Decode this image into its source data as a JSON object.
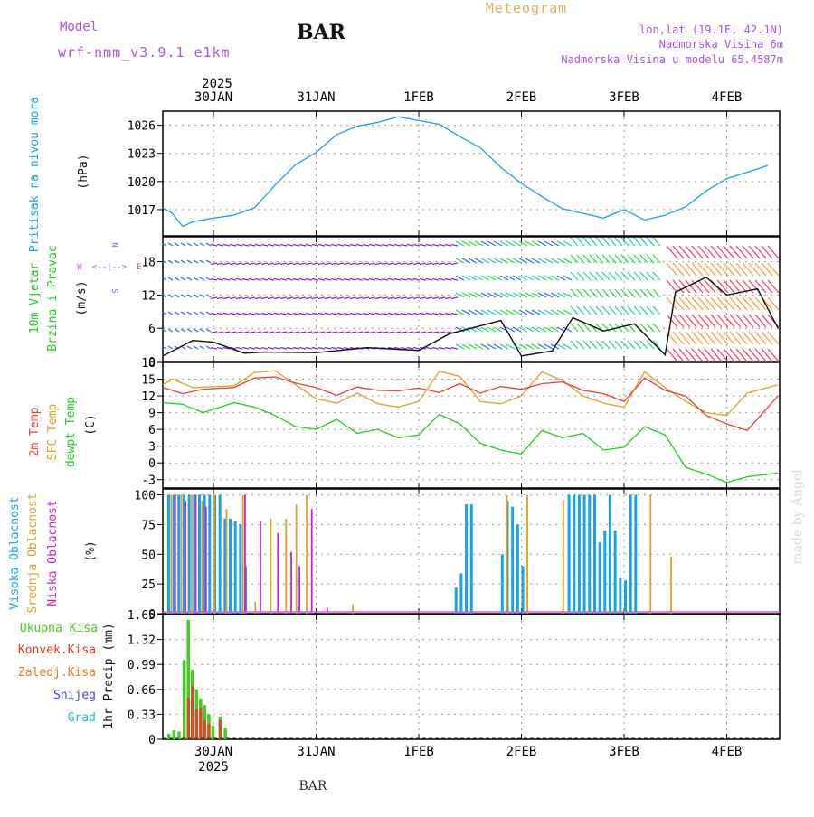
{
  "header": {
    "model_label": "Model",
    "model_name": "wrf-nmm_v3.9.1 e1km",
    "station": "BAR",
    "meteogram": "Meteogram",
    "lonlat": "lon,lat (19.1E, 42.1N)",
    "elevation": "Nadmorska Visina 6m",
    "model_elevation": "Nadmorska Visina u modelu 65.4587m"
  },
  "footer": {
    "station": "BAR",
    "watermark": "made by Angel"
  },
  "colors": {
    "pressure": "#19a2ea",
    "temp2m": "#e8403c",
    "sfc": "#e0a028",
    "dewpt": "#22cc22",
    "wind_label": "#22cc22",
    "cloud_high": "#19a2ea",
    "cloud_mid": "#e0a028",
    "cloud_low": "#cc22cc",
    "precip_total": "#44cc22",
    "precip_conv": "#ee3322",
    "precip_frz": "#ee7722",
    "precip_snow": "#4444ee",
    "precip_grad": "#22bbbb",
    "model": "#aa55dd"
  },
  "chart_data": [
    {
      "type": "line",
      "title": "Pritisak na nivou mora",
      "ylabel": "(hPa)",
      "ylim": [
        1014.2,
        1027.5
      ],
      "yticks": [
        1017,
        1020,
        1023,
        1026
      ],
      "x_days": [
        "30JAN",
        "31JAN",
        "1FEB",
        "2FEB",
        "3FEB",
        "4FEB"
      ],
      "year": "2025",
      "grid": true,
      "series": [
        {
          "name": "Pritisak na nivou mora",
          "x": [
            -0.5,
            -0.4,
            -0.3,
            -0.2,
            0,
            0.2,
            0.4,
            0.6,
            0.8,
            1.0,
            1.2,
            1.4,
            1.6,
            1.8,
            2.0,
            2.2,
            2.4,
            2.6,
            2.8,
            3.0,
            3.2,
            3.4,
            3.6,
            3.8,
            4.0,
            4.2,
            4.4,
            4.6,
            4.8,
            5.0,
            5.2,
            5.4
          ],
          "y": [
            1017.2,
            1016.6,
            1015.2,
            1015.7,
            1016.1,
            1016.4,
            1017.2,
            1019.6,
            1021.8,
            1023.1,
            1025.0,
            1025.9,
            1026.3,
            1026.9,
            1026.5,
            1026.1,
            1024.8,
            1023.6,
            1021.5,
            1019.8,
            1018.4,
            1017.1,
            1016.6,
            1016.1,
            1017.0,
            1015.9,
            1016.4,
            1017.3,
            1019.0,
            1020.3,
            1021.0,
            1021.7
          ]
        }
      ]
    },
    {
      "type": "line",
      "title": "10m Vjetar Brzina i Pravac",
      "ylabel": "(m/s)",
      "ylim": [
        0,
        22.5
      ],
      "yticks": [
        0,
        6,
        12,
        18
      ],
      "grid": true,
      "legend": [
        "N",
        "W",
        "E",
        "S"
      ],
      "series": [
        {
          "name": "Brzina",
          "x": [
            -0.5,
            -0.2,
            0,
            0.3,
            0.5,
            1.0,
            1.5,
            2.0,
            2.3,
            2.8,
            3.0,
            3.3,
            3.5,
            3.8,
            4.1,
            4.4,
            4.5,
            4.8,
            5.0,
            5.3,
            5.5
          ],
          "y": [
            1.0,
            3.8,
            3.5,
            1.5,
            1.7,
            1.6,
            2.5,
            2.0,
            5.0,
            7.4,
            1.0,
            1.9,
            7.9,
            5.5,
            6.8,
            1.2,
            12.5,
            15.2,
            12.0,
            13.1,
            6.0
          ]
        }
      ]
    },
    {
      "type": "line",
      "yticks": [
        -3,
        0,
        3,
        6,
        9,
        12,
        15,
        18
      ],
      "ylim": [
        -4.5,
        18
      ],
      "ylabel": "(C)",
      "grid": true,
      "series": [
        {
          "name": "2m Temp",
          "x": [
            -0.5,
            -0.3,
            -0.1,
            0.2,
            0.4,
            0.6,
            0.8,
            1.0,
            1.2,
            1.4,
            1.6,
            1.8,
            2.0,
            2.2,
            2.4,
            2.6,
            2.8,
            3.0,
            3.2,
            3.4,
            3.6,
            3.8,
            4.0,
            4.2,
            4.4,
            4.6,
            4.8,
            5.0,
            5.2,
            5.5
          ],
          "y": [
            13.5,
            12.4,
            13.2,
            13.5,
            15.2,
            15.4,
            14.3,
            13.5,
            12.1,
            13.6,
            13.0,
            12.9,
            13.4,
            12.6,
            14.2,
            12.5,
            13.7,
            13.2,
            14.2,
            14.5,
            13.0,
            12.4,
            11.0,
            15.2,
            13.0,
            12.0,
            8.5,
            7.0,
            5.8,
            12.0
          ]
        },
        {
          "name": "SFC Temp",
          "x": [
            -0.5,
            -0.4,
            -0.2,
            0.2,
            0.4,
            0.6,
            0.8,
            1.0,
            1.2,
            1.4,
            1.6,
            1.8,
            2.0,
            2.2,
            2.4,
            2.6,
            2.8,
            3.0,
            3.2,
            3.4,
            3.6,
            3.8,
            4.0,
            4.2,
            4.4,
            4.6,
            4.8,
            5.0,
            5.2,
            5.5
          ],
          "y": [
            14.0,
            15.0,
            13.5,
            13.8,
            16.2,
            16.5,
            14.0,
            11.5,
            10.7,
            12.5,
            10.6,
            10.0,
            11.0,
            16.4,
            15.5,
            11.0,
            10.6,
            12.0,
            16.3,
            14.8,
            12.0,
            10.7,
            10.0,
            16.3,
            13.5,
            11.0,
            9.0,
            8.5,
            12.5,
            14.0
          ]
        },
        {
          "name": "dewpt Temp",
          "x": [
            -0.5,
            -0.3,
            -0.1,
            0.2,
            0.4,
            0.6,
            0.8,
            1.0,
            1.2,
            1.4,
            1.6,
            1.8,
            2.0,
            2.2,
            2.4,
            2.6,
            2.8,
            3.0,
            3.2,
            3.4,
            3.6,
            3.8,
            4.0,
            4.2,
            4.4,
            4.6,
            4.8,
            5.0,
            5.2,
            5.5
          ],
          "y": [
            10.8,
            10.5,
            9.0,
            10.8,
            10.0,
            8.5,
            6.5,
            6.0,
            7.8,
            5.3,
            6.0,
            4.5,
            5.0,
            8.7,
            7.0,
            3.5,
            2.3,
            1.6,
            5.8,
            4.5,
            5.3,
            2.3,
            2.8,
            6.5,
            5.0,
            -0.8,
            -2.0,
            -3.5,
            -2.5,
            -1.8
          ]
        }
      ]
    },
    {
      "type": "bar",
      "title": "Visoka Oblacnost / Srednja Oblacnost / Niska Oblacnost",
      "ylabel": "(%)",
      "ylim": [
        0,
        105
      ],
      "yticks": [
        0,
        25,
        50,
        75,
        100
      ],
      "grid": true,
      "series": [
        {
          "name": "Visoka Oblacnost",
          "x": [
            -0.45,
            -0.4,
            -0.35,
            -0.3,
            -0.25,
            -0.2,
            -0.15,
            -0.1,
            -0.05,
            0,
            0.05,
            0.1,
            0.15,
            0.2,
            0.25,
            0.3,
            2.35,
            2.4,
            2.45,
            2.5,
            2.8,
            2.85,
            2.9,
            2.95,
            3.0,
            3.45,
            3.5,
            3.55,
            3.6,
            3.65,
            3.7,
            3.75,
            3.8,
            3.85,
            3.9,
            3.95,
            4.0,
            4.05,
            4.1
          ],
          "y": [
            100,
            100,
            100,
            100,
            100,
            100,
            100,
            100,
            100,
            100,
            100,
            80,
            80,
            78,
            75,
            40,
            22,
            34,
            92,
            92,
            50,
            95,
            90,
            75,
            40,
            100,
            100,
            100,
            100,
            100,
            100,
            60,
            70,
            100,
            70,
            30,
            28,
            100,
            100
          ]
        },
        {
          "name": "Srednja Oblacnost",
          "x": [
            -0.42,
            -0.32,
            -0.22,
            -0.12,
            0,
            0.12,
            0.28,
            0.4,
            0.55,
            0.7,
            0.8,
            0.9,
            1.35,
            2.85,
            3.05,
            3.4,
            4.25,
            4.45
          ],
          "y": [
            100,
            100,
            100,
            95,
            100,
            88,
            100,
            10,
            80,
            80,
            92,
            100,
            8,
            100,
            100,
            96,
            100,
            48
          ]
        },
        {
          "name": "Niska Oblacnost",
          "x": [
            -0.38,
            -0.28,
            -0.18,
            -0.08,
            0.3,
            0.45,
            0.62,
            0.75,
            0.95,
            1.1,
            0.83
          ],
          "y": [
            100,
            95,
            100,
            90,
            100,
            78,
            68,
            52,
            88,
            5,
            40
          ]
        }
      ]
    },
    {
      "type": "bar",
      "ylabel": "1hr Precip (mm)",
      "ylim": [
        0,
        1.65
      ],
      "yticks": [
        0,
        0.33,
        0.66,
        0.99,
        1.32,
        1.65
      ],
      "grid": true,
      "series": [
        {
          "name": "Ukupna Kisa",
          "x": [
            -0.45,
            -0.4,
            -0.35,
            -0.3,
            -0.26,
            -0.22,
            -0.18,
            -0.14,
            -0.1,
            -0.06,
            -0.02,
            0.05,
            0.1
          ],
          "y": [
            0.07,
            0.12,
            0.1,
            1.05,
            1.58,
            0.92,
            0.66,
            0.54,
            0.45,
            0.33,
            0.18,
            0.3,
            0.15
          ]
        },
        {
          "name": "Konvek.Kisa",
          "x": [
            -0.26,
            -0.22,
            -0.18,
            -0.14,
            -0.1,
            -0.06,
            0.05
          ],
          "y": [
            0.55,
            0.7,
            0.4,
            0.42,
            0.25,
            0.2,
            0.25
          ]
        }
      ],
      "legend": [
        "Ukupna Kisa",
        "Konvek.Kisa",
        "Zaledj.Kisa",
        "Snijeg",
        "Grad"
      ]
    }
  ]
}
